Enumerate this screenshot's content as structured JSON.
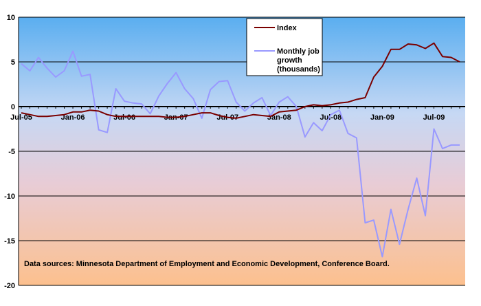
{
  "chart_data": {
    "type": "line",
    "title": "",
    "xlabel": "",
    "ylabel": "",
    "ylim": [
      -20,
      10
    ],
    "yticks": [
      10,
      5,
      0,
      -5,
      -10,
      -15,
      -20
    ],
    "ytick_labels": [
      "10",
      "5",
      "0",
      "-5",
      "-10",
      "-15",
      "-20"
    ],
    "x_tick_labels": [
      "Jul-05",
      "Jan-06",
      "Jul-06",
      "Jan-07",
      "Jul-07",
      "Jan-08",
      "Jul-08",
      "Jan-09",
      "Jul-09"
    ],
    "x_tick_index": [
      0,
      6,
      12,
      18,
      24,
      30,
      36,
      42,
      48
    ],
    "grid": true,
    "legend_position": "top-right",
    "background_gradient": [
      "#5aaef0",
      "#c6d8f4",
      "#e8ccd6",
      "#fcc08e"
    ],
    "series": [
      {
        "name": "Index",
        "color": "#7a0000",
        "values": [
          -0.7,
          -0.9,
          -1.1,
          -1.1,
          -1.0,
          -0.9,
          -0.6,
          -0.6,
          -0.4,
          -0.5,
          -0.9,
          -1.1,
          -1.1,
          -1.1,
          -1.1,
          -1.1,
          -1.1,
          -1.2,
          -1.2,
          -1.1,
          -0.9,
          -0.7,
          -0.7,
          -1.0,
          -1.2,
          -1.3,
          -1.1,
          -0.9,
          -1.0,
          -1.1,
          -0.6,
          -0.5,
          -0.4,
          0.0,
          0.2,
          0.1,
          0.2,
          0.4,
          0.5,
          0.8,
          1.0,
          3.3,
          4.5,
          6.4,
          6.4,
          7.0,
          6.9,
          6.5,
          7.1,
          5.6,
          5.5,
          5.0
        ]
      },
      {
        "name": "Monthly job growth (thousands)",
        "color": "#9999ff",
        "values": [
          4.8,
          4.0,
          5.5,
          4.3,
          3.3,
          4.0,
          6.2,
          3.4,
          3.6,
          -2.6,
          -2.9,
          2.0,
          0.6,
          0.4,
          0.3,
          -0.8,
          1.2,
          2.6,
          3.8,
          2.0,
          0.9,
          -1.3,
          1.9,
          2.8,
          2.9,
          0.5,
          -0.5,
          0.4,
          1.0,
          -1.0,
          0.5,
          1.1,
          0.0,
          -3.4,
          -1.8,
          -2.7,
          -0.9,
          -0.4,
          -3.0,
          -3.5,
          -13.0,
          -12.7,
          -16.8,
          -11.5,
          -15.4,
          -11.5,
          -8.0,
          -12.2,
          -2.5,
          -4.7,
          -4.3,
          -4.3
        ]
      }
    ],
    "legend": {
      "index_label": "Index",
      "job_lines": [
        "Monthly job",
        "growth",
        "(thousands)"
      ]
    },
    "annotation": "Data sources:  Minnesota Department of Employment and Economic Development, Conference Board."
  }
}
